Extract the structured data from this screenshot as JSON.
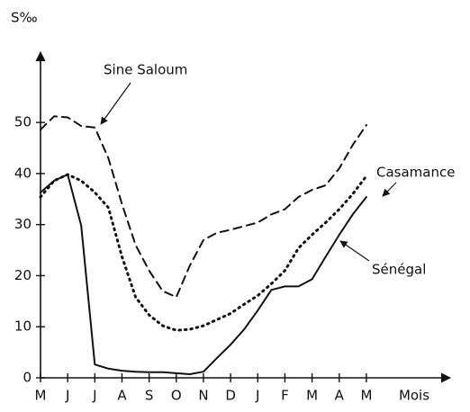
{
  "chart_data": {
    "type": "line",
    "y_label": "S‰",
    "x_label": "Mois",
    "categories": [
      "M",
      null,
      "J",
      null,
      "J",
      null,
      "A",
      null,
      "S",
      null,
      "O",
      null,
      "N",
      null,
      "D",
      null,
      "J",
      null,
      "F",
      null,
      "M",
      null,
      "A",
      null,
      "M"
    ],
    "ylim": [
      0,
      62
    ],
    "yticks": [
      0,
      10,
      20,
      30,
      40,
      50
    ],
    "series": [
      {
        "name": "Sine Saloum",
        "color": "#111111",
        "style": "dashed",
        "values": [
          48.6,
          51.2,
          51,
          49.3,
          49,
          43,
          34,
          26,
          21,
          17,
          15.8,
          22,
          27,
          28.4,
          29,
          29.7,
          30.4,
          32,
          33,
          35.4,
          36.8,
          37.7,
          41,
          45.6,
          49.5
        ]
      },
      {
        "name": "Casamance",
        "color": "#111111",
        "style": "dotted",
        "values": [
          35.4,
          38.6,
          39.8,
          38.6,
          36.3,
          33.3,
          23.7,
          15.8,
          12.3,
          10.2,
          9.3,
          9.5,
          10.2,
          11.4,
          12.6,
          14.4,
          16.1,
          18.4,
          21,
          25.4,
          28,
          30.4,
          33,
          36,
          39.5
        ]
      },
      {
        "name": "Sénégal",
        "color": "#111111",
        "style": "solid",
        "values": [
          36.3,
          38.6,
          39.8,
          29.8,
          2.6,
          1.8,
          1.4,
          1.2,
          1.1,
          1.1,
          0.9,
          0.7,
          1.2,
          3.9,
          6.5,
          9.5,
          13.2,
          17.2,
          17.9,
          17.9,
          19.3,
          23.7,
          28,
          32,
          35.4
        ]
      }
    ]
  }
}
